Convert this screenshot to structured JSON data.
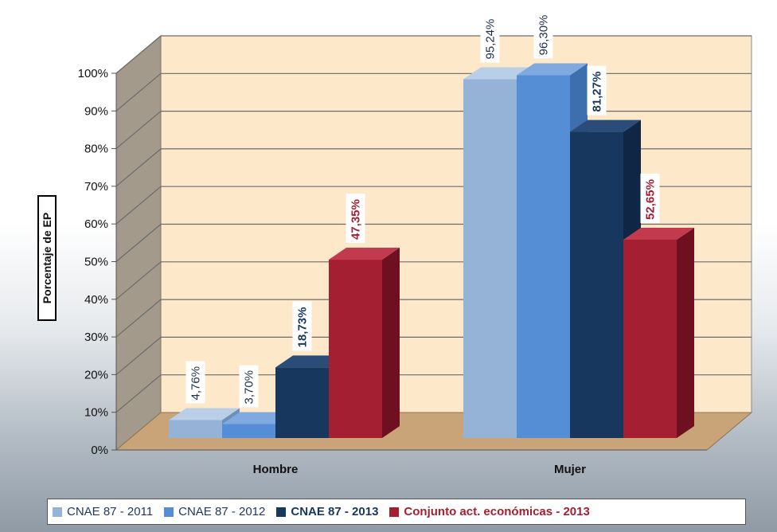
{
  "chart_data": {
    "type": "bar",
    "ylabel": "Porcentaje de EP",
    "ylim": [
      0,
      100
    ],
    "yticks": [
      "0%",
      "10%",
      "20%",
      "30%",
      "40%",
      "50%",
      "60%",
      "70%",
      "80%",
      "90%",
      "100%"
    ],
    "categories": [
      "Hombre",
      "Mujer"
    ],
    "series": [
      {
        "name": "CNAE 87 - 2011",
        "values": [
          4.76,
          95.24
        ],
        "labels": [
          "4,76%",
          "95,24%"
        ],
        "color": "#95b3d7",
        "side": "#6e8fb8",
        "top": "#b9cfe8",
        "label_color": "#1f2f4a",
        "bold": false
      },
      {
        "name": "CNAE 87 - 2012",
        "values": [
          3.7,
          96.3
        ],
        "labels": [
          "3,70%",
          "96,30%"
        ],
        "color": "#558ed5",
        "side": "#3d6fae",
        "top": "#7fa9e0",
        "label_color": "#1f2f4a",
        "bold": false
      },
      {
        "name": "CNAE 87 - 2013",
        "values": [
          18.73,
          81.27
        ],
        "labels": [
          "18,73%",
          "81,27%"
        ],
        "color": "#17375e",
        "side": "#0f2744",
        "top": "#2a4c78",
        "label_color": "#17375e",
        "bold": true
      },
      {
        "name": "Conjunto act. económicas - 2013",
        "values": [
          47.35,
          52.65
        ],
        "labels": [
          "47,35%",
          "52,65%"
        ],
        "color": "#a51f33",
        "side": "#6e1020",
        "top": "#c23a4e",
        "label_color": "#a51f33",
        "bold": true
      }
    ],
    "grid": true,
    "legend_position": "bottom",
    "three_d": true
  }
}
